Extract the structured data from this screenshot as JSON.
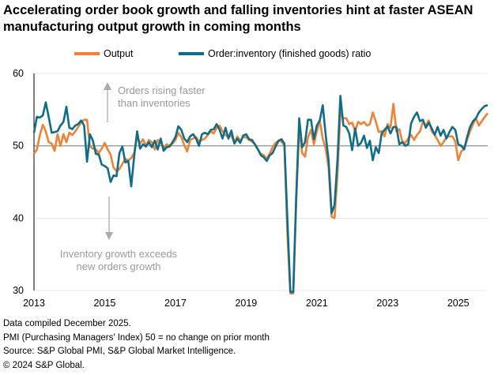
{
  "title": "Accelerating order book growth and falling inventories hint at faster ASEAN manufacturing output growth in coming months",
  "footer": [
    "Data compiled December 2025.",
    "PMI (Purchasing Managers' Index) 50 = no change on prior month",
    "Source: S&P Global PMI, S&P Global Market Intelligence.",
    "© 2024 S&P Global."
  ],
  "colors": {
    "output": "#f28232",
    "ratio": "#0e6e8a",
    "reference_line": "#9a9a9a",
    "annotation": "#9a9a9a"
  },
  "chart_data": {
    "type": "line",
    "title": "",
    "xlabel": "",
    "ylabel": "",
    "x_start": "2013-01",
    "x_end": "2025-11",
    "frequency": "monthly",
    "x_ticks": [
      "2013",
      "2015",
      "2017",
      "2019",
      "2021",
      "2023",
      "2025"
    ],
    "ylim": [
      30,
      60
    ],
    "y_ticks": [
      "30",
      "40",
      "50",
      "60"
    ],
    "reference_line": 50,
    "grid": true,
    "legend": "top",
    "annotations": [
      {
        "text": [
          "Orders rising faster",
          "than inventories"
        ],
        "arrow": "up"
      },
      {
        "text": [
          "Inventory growth exceeds",
          "new orders growth"
        ],
        "arrow": "down"
      }
    ],
    "series": [
      {
        "name": "Output",
        "values": [
          48.9,
          49.5,
          51.5,
          52.9,
          52.0,
          50.5,
          50.3,
          49.3,
          51.6,
          50.0,
          51.6,
          50.5,
          51.8,
          51.5,
          52.0,
          52.6,
          53.2,
          53.6,
          53.6,
          49.9,
          49.6,
          49.5,
          49.0,
          49.6,
          50.4,
          49.5,
          48.8,
          47.0,
          46.5,
          46.8,
          47.5,
          48.2,
          48.0,
          48.3,
          49.0,
          51.3,
          50.3,
          50.9,
          50.0,
          50.8,
          50.5,
          49.5,
          50.8,
          50.5,
          49.7,
          50.2,
          50.0,
          50.3,
          50.8,
          51.8,
          51.2,
          50.1,
          49.2,
          50.8,
          51.0,
          51.2,
          50.6,
          50.8,
          51.0,
          51.5,
          52.0,
          51.7,
          52.5,
          52.8,
          52.0,
          51.5,
          51.2,
          51.4,
          50.4,
          51.3,
          50.7,
          51.2,
          51.2,
          50.8,
          50.6,
          50.2,
          49.5,
          48.9,
          48.7,
          48.2,
          48.9,
          49.8,
          50.4,
          50.7,
          50.6,
          50.0,
          38.0,
          29.6,
          29.6,
          42.0,
          52.6,
          49.0,
          48.5,
          51.2,
          52.2,
          50.2,
          52.0,
          53.5,
          51.0,
          49.6,
          47.0,
          40.2,
          40.0,
          46.0,
          54.6,
          53.8,
          53.8,
          53.0,
          53.2,
          52.0,
          53.3,
          53.0,
          53.3,
          52.8,
          53.0,
          54.6,
          53.4,
          51.9,
          52.0,
          51.3,
          53.0,
          52.5,
          55.8,
          52.0,
          52.3,
          50.6,
          50.4,
          51.0,
          51.5,
          50.8,
          51.5,
          52.0,
          53.3,
          52.8,
          53.5,
          52.0,
          51.5,
          50.8,
          50.0,
          50.5,
          51.2,
          51.3,
          51.3,
          50.6,
          48.0,
          49.2,
          49.6,
          50.8,
          52.0,
          53.0,
          53.8,
          52.8,
          53.4,
          54.0,
          54.5
        ]
      },
      {
        "name": "Order:inventory (finished goods) ratio",
        "values": [
          51.8,
          54.0,
          53.9,
          54.2,
          56.0,
          54.0,
          51.8,
          51.9,
          52.0,
          52.8,
          53.3,
          55.4,
          52.5,
          52.3,
          52.8,
          53.0,
          53.5,
          52.8,
          47.8,
          51.6,
          50.7,
          48.9,
          48.8,
          47.4,
          47.2,
          46.9,
          45.0,
          45.9,
          45.8,
          49.0,
          49.9,
          47.7,
          47.9,
          44.4,
          48.5,
          52.0,
          49.6,
          50.2,
          49.9,
          50.5,
          49.8,
          50.7,
          49.5,
          51.0,
          49.3,
          49.8,
          49.9,
          50.5,
          51.2,
          52.7,
          52.2,
          51.0,
          50.5,
          51.3,
          51.6,
          51.0,
          50.0,
          51.6,
          51.8,
          51.6,
          52.2,
          52.3,
          53.0,
          52.2,
          51.0,
          52.5,
          51.0,
          52.1,
          50.3,
          51.0,
          50.4,
          51.4,
          51.6,
          50.9,
          50.8,
          50.2,
          49.5,
          48.7,
          48.4,
          47.9,
          48.7,
          49.0,
          49.9,
          50.7,
          50.9,
          50.3,
          40.0,
          29.8,
          29.8,
          43.0,
          53.8,
          49.8,
          50.5,
          53.6,
          53.6,
          50.9,
          52.8,
          53.5,
          55.6,
          51.5,
          48.0,
          40.7,
          41.8,
          48.0,
          56.9,
          52.8,
          52.6,
          51.7,
          49.4,
          52.4,
          50.0,
          50.4,
          51.4,
          49.7,
          50.7,
          48.0,
          49.8,
          49.0,
          51.7,
          52.2,
          52.7,
          51.7,
          52.6,
          52.6,
          50.2,
          50.5,
          50.0,
          50.2,
          53.1,
          54.0,
          54.6,
          53.4,
          53.6,
          52.5,
          53.2,
          52.4,
          51.5,
          52.6,
          51.4,
          52.2,
          51.0,
          51.9,
          52.6,
          52.2,
          50.2,
          50.0,
          49.5,
          51.2,
          52.6,
          53.4,
          53.8,
          54.6,
          55.1,
          55.5,
          55.6
        ]
      }
    ]
  }
}
